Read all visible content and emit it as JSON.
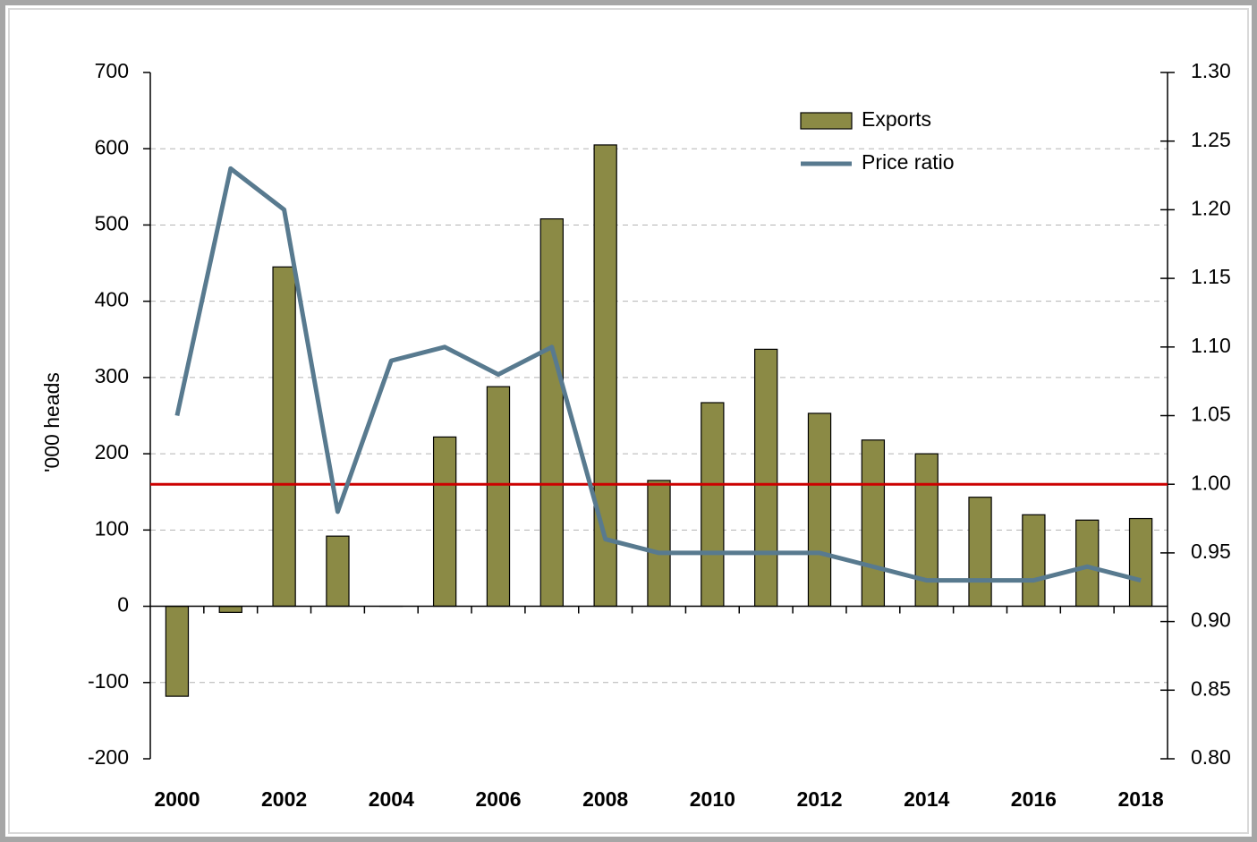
{
  "chart_data": {
    "type": "bar-line",
    "y_label": "'000 heads",
    "categories": [
      "2000",
      null,
      "2002",
      null,
      "2004",
      null,
      "2006",
      null,
      "2008",
      null,
      "2010",
      null,
      "2012",
      null,
      "2014",
      null,
      "2016",
      null,
      "2018"
    ],
    "series": [
      {
        "name": "Exports",
        "type": "bar",
        "color": "#8b8a45",
        "values": [
          -118,
          -8,
          445,
          92,
          0,
          222,
          288,
          508,
          605,
          165,
          267,
          337,
          253,
          218,
          200,
          143,
          120,
          113,
          115
        ]
      },
      {
        "name": "Price ratio",
        "type": "line",
        "axis": "y2",
        "color": "#587a8f",
        "values": [
          1.05,
          1.23,
          1.2,
          0.98,
          1.09,
          1.1,
          1.08,
          1.1,
          0.96,
          0.95,
          0.95,
          0.95,
          0.95,
          0.94,
          0.93,
          0.93,
          0.93,
          0.94,
          0.93
        ]
      }
    ],
    "ylim": [
      -200,
      700
    ],
    "yticks": [
      -200,
      -100,
      0,
      100,
      200,
      300,
      400,
      500,
      600,
      700
    ],
    "y2lim": [
      0.8,
      1.3
    ],
    "y2ticks": [
      {
        "value": 0.8,
        "label": "0.80"
      },
      0.85,
      {
        "value": 0.9,
        "label": "0.90"
      },
      0.95,
      {
        "value": 1.0,
        "label": "1.00"
      },
      1.05,
      {
        "value": 1.1,
        "label": "1.10"
      },
      1.15,
      {
        "value": 1.2,
        "label": "1.20"
      },
      1.25,
      {
        "value": 1.3,
        "label": "1.30"
      }
    ],
    "reference_line": {
      "value": 1.0,
      "axis": "y2",
      "color": "#cc0000"
    },
    "grid": true,
    "legend": "upper right"
  }
}
